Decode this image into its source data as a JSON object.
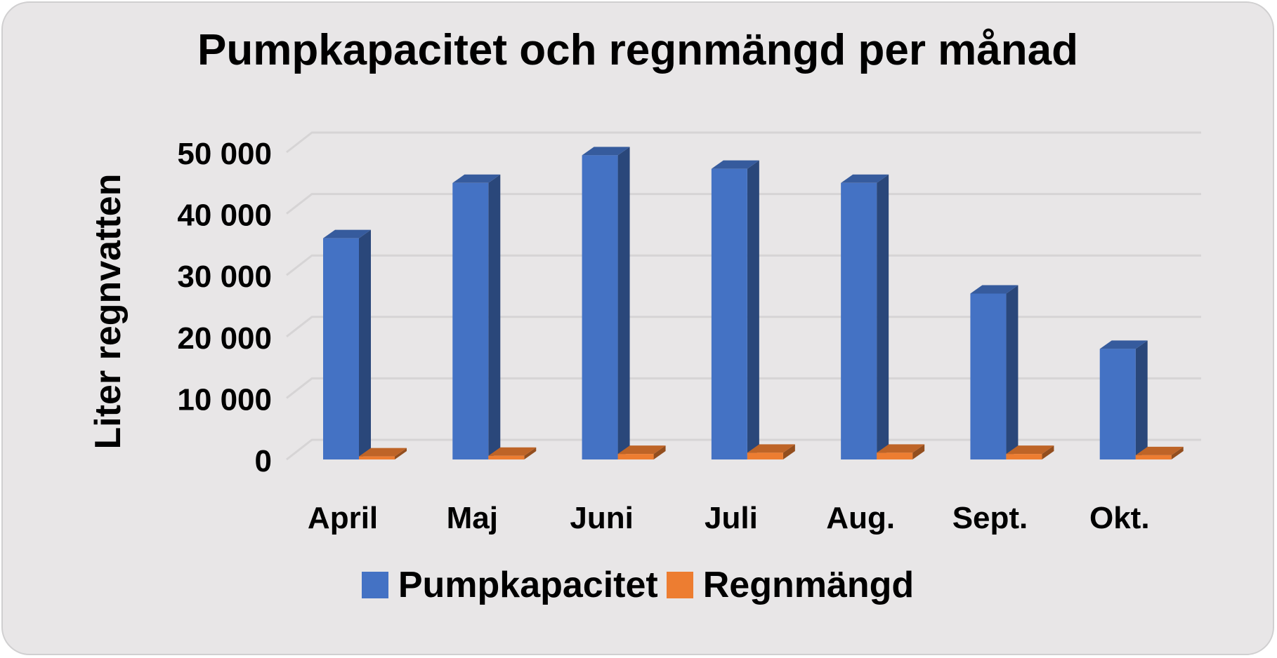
{
  "chart_data": {
    "type": "bar",
    "title": "Pumpkapacitet och regnmängd per månad",
    "xlabel": "",
    "ylabel": "Liter regnvatten",
    "categories": [
      "April",
      "Maj",
      "Juni",
      "Juli",
      "Aug.",
      "Sept.",
      "Okt."
    ],
    "series": [
      {
        "name": "Pumpkapacitet",
        "color": "#4472c4",
        "values": [
          36000,
          45000,
          49500,
          47300,
          45000,
          27000,
          18000
        ]
      },
      {
        "name": "Regnmängd",
        "color": "#ed7d31",
        "values": [
          500,
          600,
          900,
          1100,
          1100,
          900,
          700
        ]
      }
    ],
    "ylim": [
      0,
      50000
    ],
    "yticks": [
      "0",
      "10 000",
      "20 000",
      "30 000",
      "40 000",
      "50 000"
    ],
    "grid": true,
    "legend": "bottom",
    "style": "3d-column"
  }
}
